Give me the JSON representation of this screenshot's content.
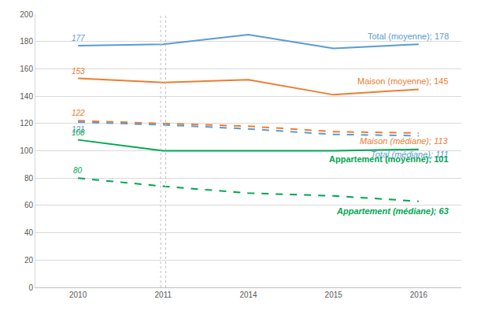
{
  "chart_data": {
    "type": "line",
    "categories": [
      "2010",
      "2011",
      "2014",
      "2015",
      "2016"
    ],
    "ylim": [
      0,
      200
    ],
    "yticks": [
      0,
      20,
      40,
      60,
      80,
      100,
      120,
      140,
      160,
      180,
      200
    ],
    "grid": true,
    "data_labels": true,
    "series": [
      {
        "name": "Total (moyenne)",
        "color": "#5b9bd5",
        "line_style": "solid",
        "values": [
          177,
          178,
          185,
          175,
          178
        ],
        "value_labels": [
          "177",
          null,
          null,
          null,
          "Total (moyenne); 178"
        ]
      },
      {
        "name": "Maison (moyenne)",
        "color": "#ed7d31",
        "line_style": "solid",
        "values": [
          153,
          150,
          152,
          141,
          145
        ],
        "value_labels": [
          "153",
          null,
          null,
          null,
          "Maison (moyenne); 145"
        ]
      },
      {
        "name": "Maison (médiane)",
        "color": "#ed7d31",
        "line_style": "dash",
        "values": [
          122,
          120,
          118,
          114,
          113
        ],
        "value_labels": [
          "122",
          null,
          null,
          null,
          "Maison (médiane); 113"
        ]
      },
      {
        "name": "Total (médiane)",
        "color": "#5b9bd5",
        "line_style": "dash",
        "values": [
          121,
          119,
          116,
          112,
          111
        ],
        "value_labels": [
          "121",
          null,
          null,
          null,
          "Total (médiane); 111"
        ]
      },
      {
        "name": "Appartement (moyenne)",
        "color": "#00a651",
        "line_style": "solid",
        "values": [
          108,
          100,
          100,
          100,
          101
        ],
        "value_labels": [
          "108",
          null,
          null,
          null,
          "Appartement (moyenne); 101"
        ]
      },
      {
        "name": "Appartement (médiane)",
        "color": "#00a651",
        "line_style": "dash",
        "values": [
          80,
          74,
          69,
          67,
          63
        ],
        "value_labels": [
          "80",
          null,
          null,
          null,
          "Appartement (médiane); 63"
        ]
      }
    ]
  }
}
